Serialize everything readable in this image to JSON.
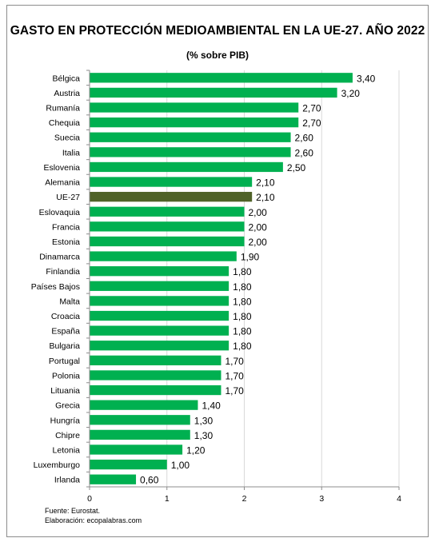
{
  "title": "GASTO EN PROTECCIÓN MEDIOAMBIENTAL EN LA UE-27. AÑO 2022",
  "subtitle": "(% sobre PIB)",
  "source": "Fuente: Eurostat.",
  "elaboration": "Elaboración: ecopalabras.com",
  "colors": {
    "bar": "#00b050",
    "highlight": "#4f6228",
    "gridline": "#d9d9d9",
    "axis": "#8c8c8c"
  },
  "chart_data": {
    "type": "bar",
    "orientation": "horizontal",
    "categories": [
      "Bélgica",
      "Austria",
      "Rumanía",
      "Chequia",
      "Suecia",
      "Italia",
      "Eslovenia",
      "Alemania",
      "UE-27",
      "Eslovaquia",
      "Francia",
      "Estonia",
      "Dinamarca",
      "Finlandia",
      "Países Bajos",
      "Malta",
      "Croacia",
      "España",
      "Bulgaria",
      "Portugal",
      "Polonia",
      "Lituania",
      "Grecia",
      "Hungría",
      "Chipre",
      "Letonia",
      "Luxemburgo",
      "Irlanda"
    ],
    "values": [
      3.4,
      3.2,
      2.7,
      2.7,
      2.6,
      2.6,
      2.5,
      2.1,
      2.1,
      2.0,
      2.0,
      2.0,
      1.9,
      1.8,
      1.8,
      1.8,
      1.8,
      1.8,
      1.8,
      1.7,
      1.7,
      1.7,
      1.4,
      1.3,
      1.3,
      1.2,
      1.0,
      0.6
    ],
    "value_labels": [
      "3,40",
      "3,20",
      "2,70",
      "2,70",
      "2,60",
      "2,60",
      "2,50",
      "2,10",
      "2,10",
      "2,00",
      "2,00",
      "2,00",
      "1,90",
      "1,80",
      "1,80",
      "1,80",
      "1,80",
      "1,80",
      "1,80",
      "1,70",
      "1,70",
      "1,70",
      "1,40",
      "1,30",
      "1,30",
      "1,20",
      "1,00",
      "0,60"
    ],
    "highlight_category": "UE-27",
    "xlim": [
      0,
      4
    ],
    "xticks": [
      "0",
      "1",
      "2",
      "3",
      "4"
    ],
    "grid": true
  }
}
